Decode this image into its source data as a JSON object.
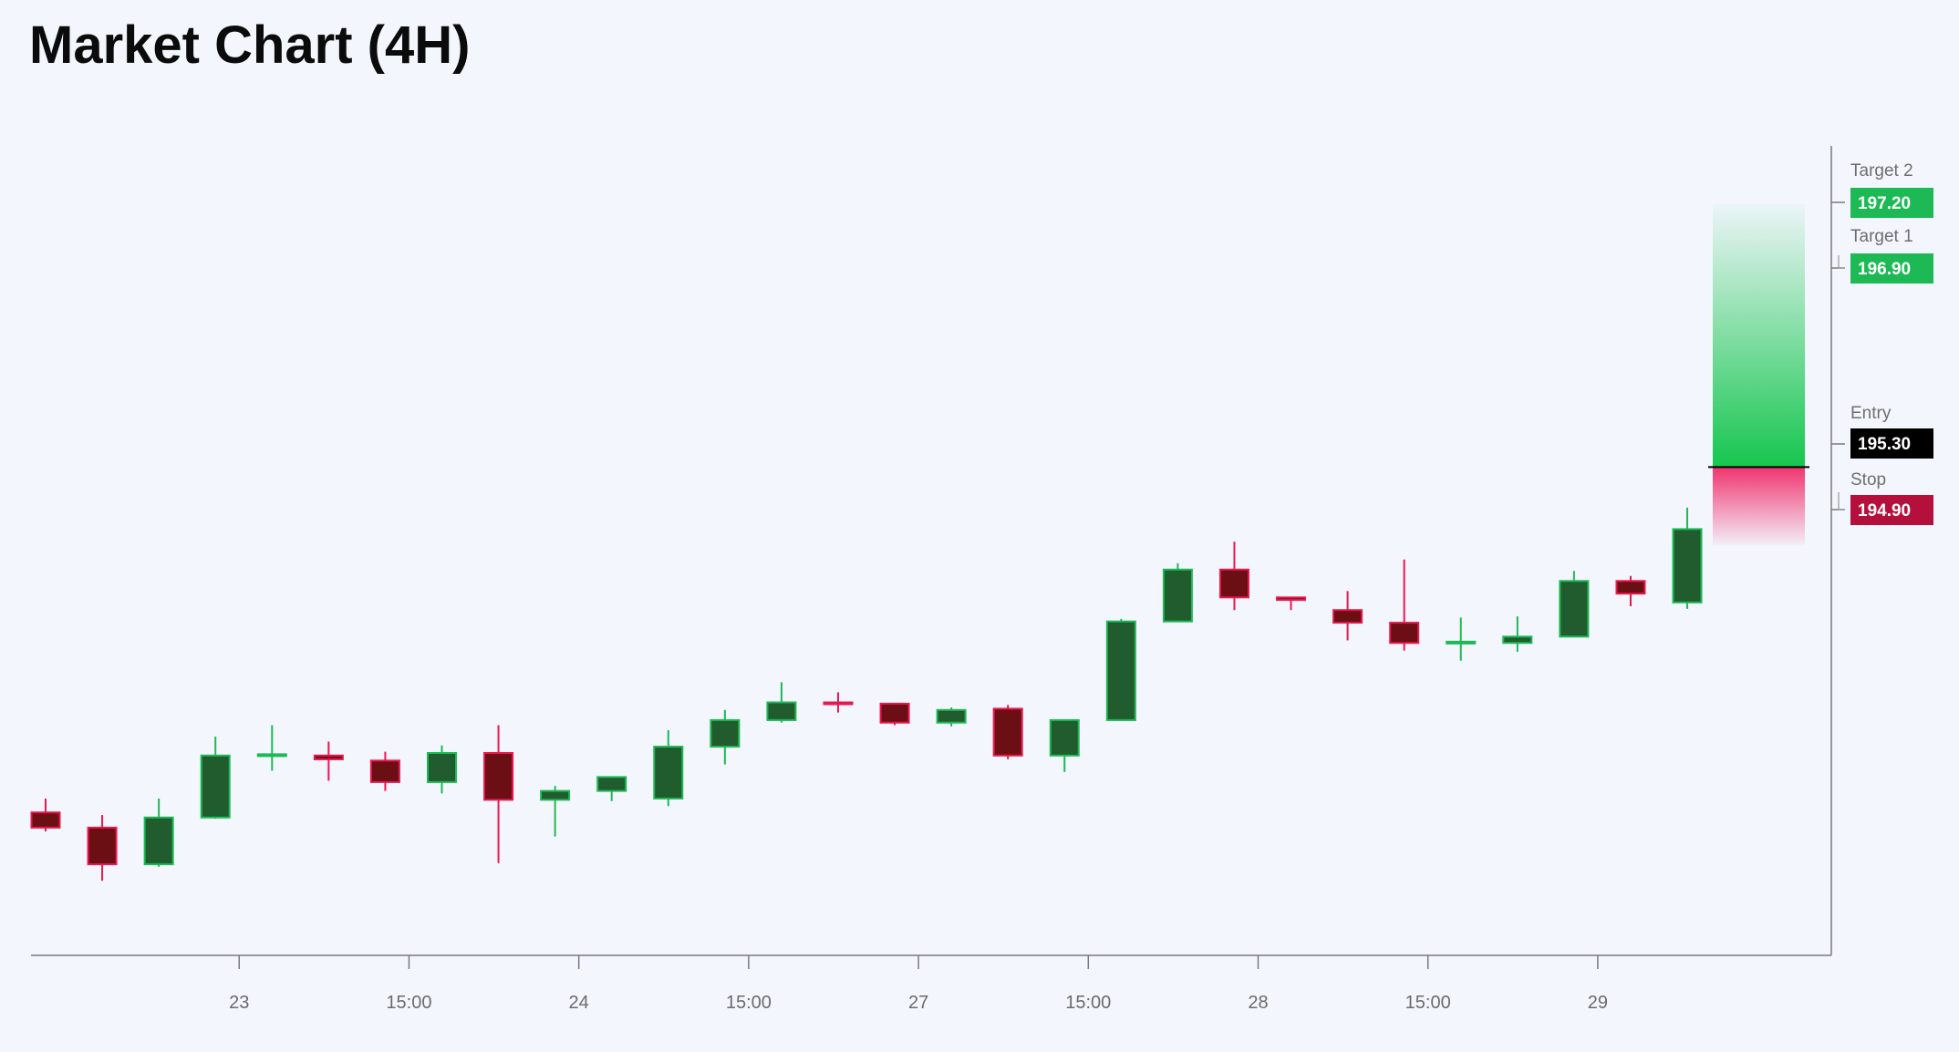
{
  "title": "Market Chart (4H)",
  "chart_data": {
    "type": "candlestick",
    "title": "Market Chart (4H)",
    "xlabel": "",
    "ylabel": "",
    "ylim": [
      191.44,
      197.84
    ],
    "x_tick_labels": [
      "23",
      "15:00",
      "24",
      "15:00",
      "27",
      "15:00",
      "28",
      "15:00",
      "29"
    ],
    "x_tick_after_candle": [
      4,
      7,
      10,
      13,
      16,
      19,
      22,
      25,
      28
    ],
    "candles": [
      {
        "o": 192.57,
        "h": 192.68,
        "l": 192.42,
        "c": 192.45
      },
      {
        "o": 192.45,
        "h": 192.55,
        "l": 192.03,
        "c": 192.16
      },
      {
        "o": 192.16,
        "h": 192.68,
        "l": 192.14,
        "c": 192.53
      },
      {
        "o": 192.53,
        "h": 193.17,
        "l": 192.52,
        "c": 193.02
      },
      {
        "o": 193.02,
        "h": 193.26,
        "l": 192.9,
        "c": 193.03
      },
      {
        "o": 193.02,
        "h": 193.13,
        "l": 192.82,
        "c": 192.99
      },
      {
        "o": 192.98,
        "h": 193.05,
        "l": 192.74,
        "c": 192.81
      },
      {
        "o": 192.81,
        "h": 193.1,
        "l": 192.72,
        "c": 193.04
      },
      {
        "o": 193.04,
        "h": 193.26,
        "l": 192.17,
        "c": 192.67
      },
      {
        "o": 192.67,
        "h": 192.78,
        "l": 192.38,
        "c": 192.74
      },
      {
        "o": 192.74,
        "h": 192.84,
        "l": 192.66,
        "c": 192.85
      },
      {
        "o": 192.68,
        "h": 193.22,
        "l": 192.62,
        "c": 193.09
      },
      {
        "o": 193.09,
        "h": 193.38,
        "l": 192.95,
        "c": 193.3
      },
      {
        "o": 193.3,
        "h": 193.6,
        "l": 193.28,
        "c": 193.44
      },
      {
        "o": 193.44,
        "h": 193.52,
        "l": 193.36,
        "c": 193.43
      },
      {
        "o": 193.43,
        "h": 193.43,
        "l": 193.26,
        "c": 193.28
      },
      {
        "o": 193.28,
        "h": 193.4,
        "l": 193.25,
        "c": 193.38
      },
      {
        "o": 193.39,
        "h": 193.42,
        "l": 192.99,
        "c": 193.02
      },
      {
        "o": 193.02,
        "h": 193.3,
        "l": 192.89,
        "c": 193.3
      },
      {
        "o": 193.3,
        "h": 194.1,
        "l": 193.3,
        "c": 194.08
      },
      {
        "o": 194.08,
        "h": 194.54,
        "l": 194.08,
        "c": 194.49
      },
      {
        "o": 194.49,
        "h": 194.71,
        "l": 194.17,
        "c": 194.27
      },
      {
        "o": 194.27,
        "h": 194.27,
        "l": 194.17,
        "c": 194.25
      },
      {
        "o": 194.17,
        "h": 194.32,
        "l": 193.93,
        "c": 194.07
      },
      {
        "o": 194.07,
        "h": 194.57,
        "l": 193.85,
        "c": 193.91
      },
      {
        "o": 193.91,
        "h": 194.11,
        "l": 193.77,
        "c": 193.92
      },
      {
        "o": 193.91,
        "h": 194.12,
        "l": 193.84,
        "c": 193.96
      },
      {
        "o": 193.96,
        "h": 194.48,
        "l": 193.96,
        "c": 194.4
      },
      {
        "o": 194.4,
        "h": 194.44,
        "l": 194.2,
        "c": 194.3
      },
      {
        "o": 194.23,
        "h": 194.98,
        "l": 194.18,
        "c": 194.81
      }
    ],
    "levels": [
      {
        "name": "Target 2",
        "value": "197.20",
        "price": 197.2,
        "color": "#1db954"
      },
      {
        "name": "Target 1",
        "value": "196.90",
        "price": 196.9,
        "color": "#1db954"
      },
      {
        "name": "Entry",
        "value": "195.30",
        "price": 195.3,
        "color": "#000000"
      },
      {
        "name": "Stop",
        "value": "194.90",
        "price": 194.9,
        "color": "#b5103c"
      }
    ],
    "colors": {
      "up_body": "#205c2e",
      "up_outline": "#1db954",
      "down_body": "#6b0f14",
      "down_outline": "#e8184e",
      "target_zone": "#16c64f",
      "stop_zone": "#f0356f",
      "axis": "#7a7a7a",
      "background": "#f3f6fd"
    }
  }
}
